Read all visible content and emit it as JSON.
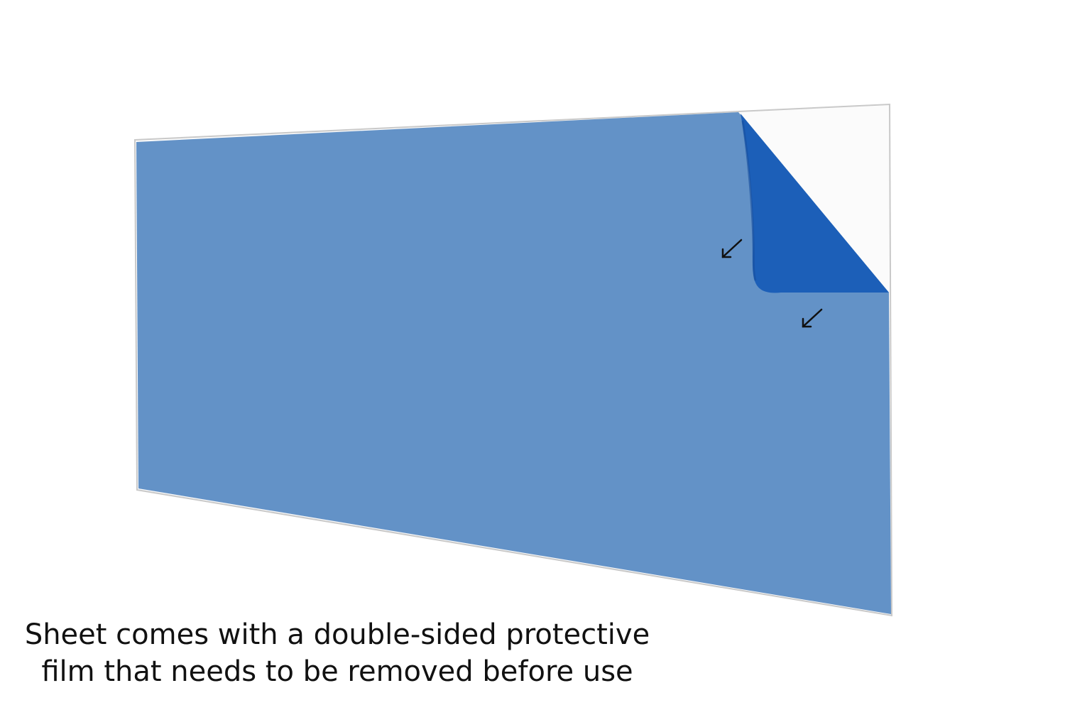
{
  "caption": {
    "line1": "Sheet comes with a double-sided protective",
    "line2": "film that needs to be removed before use"
  },
  "colors": {
    "background": "#ffffff",
    "film_front": "#6392c7",
    "film_back": "#1c5fb8",
    "sheet_clear": "#fbfbfb",
    "sheet_edge": "#c9c9c9",
    "arrow": "#111111"
  },
  "icons": {
    "arrow_upper": "arrow-down-left-icon",
    "arrow_lower": "arrow-down-left-icon"
  }
}
